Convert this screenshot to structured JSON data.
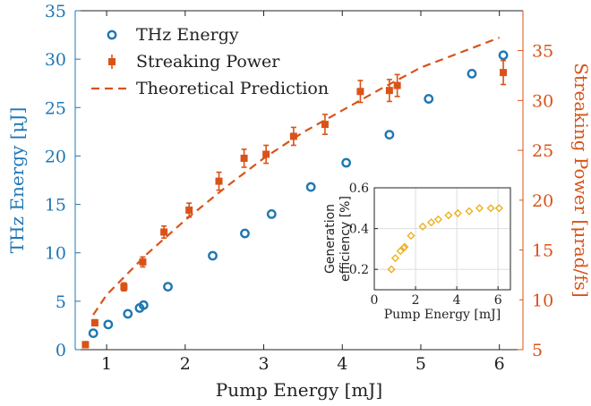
{
  "chart_data": [
    {
      "type": "scatter",
      "xlabel": "Pump Energy [mJ]",
      "ylabel": "THz Energy [μJ]",
      "y2label": "Streaking Power [μrad/fs]",
      "xlim": [
        0.6,
        6.3
      ],
      "ylim": [
        0,
        35
      ],
      "y2lim": [
        5,
        39
      ],
      "xticks": [
        "1",
        "2",
        "3",
        "4",
        "5",
        "6"
      ],
      "yticks": [
        "0",
        "5",
        "10",
        "15",
        "20",
        "25",
        "30",
        "35"
      ],
      "y2ticks": [
        "5",
        "10",
        "15",
        "20",
        "25",
        "30",
        "35"
      ],
      "grid": false,
      "legend_position": "top-left",
      "colors": {
        "left_axis": "#1f77b4",
        "right_axis": "#d95319",
        "marker_blue": "#1f77b4",
        "marker_orange": "#d95319"
      },
      "series": [
        {
          "name": "THz Energy",
          "axis": "left",
          "marker": "circle",
          "x": [
            0.83,
            1.02,
            1.27,
            1.42,
            1.47,
            1.78,
            2.35,
            2.76,
            3.1,
            3.6,
            4.05,
            4.6,
            5.1,
            5.65,
            6.05
          ],
          "y": [
            1.7,
            2.6,
            3.7,
            4.3,
            4.6,
            6.5,
            9.7,
            12.0,
            14.0,
            16.8,
            19.3,
            22.2,
            25.9,
            28.5,
            30.4
          ]
        },
        {
          "name": "Streaking Power",
          "axis": "right",
          "marker": "square-errorbar",
          "x": [
            0.73,
            0.85,
            1.22,
            1.46,
            1.73,
            2.05,
            2.43,
            2.75,
            3.03,
            3.38,
            3.78,
            4.23,
            4.6,
            4.7,
            6.05
          ],
          "y": [
            5.5,
            7.7,
            11.3,
            13.8,
            16.8,
            19.0,
            21.9,
            24.2,
            24.6,
            26.4,
            27.6,
            30.9,
            31.0,
            31.5,
            32.8
          ],
          "err": [
            0.3,
            0.3,
            0.4,
            0.5,
            0.6,
            0.7,
            0.9,
            0.9,
            0.9,
            0.9,
            1.0,
            1.1,
            1.1,
            1.1,
            1.2
          ]
        },
        {
          "name": "Theoretical Prediction",
          "axis": "right",
          "style": "dashed-line",
          "x": [
            0.83,
            1.0,
            1.5,
            2.0,
            2.5,
            3.0,
            3.5,
            4.0,
            4.5,
            5.0,
            5.5,
            6.0
          ],
          "y": [
            8.5,
            10.5,
            14.5,
            18.0,
            21.2,
            24.2,
            26.8,
            29.0,
            31.2,
            33.3,
            34.8,
            36.3
          ]
        }
      ]
    },
    {
      "type": "scatter",
      "inset": true,
      "xlabel": "Pump Energy [mJ]",
      "ylabel": "Generation efficiency [%]",
      "xlim": [
        0,
        6.6
      ],
      "ylim": [
        0.1,
        0.6
      ],
      "xticks": [
        "0",
        "2",
        "4",
        "6"
      ],
      "yticks": [
        "0.2",
        "0.4",
        "0.6"
      ],
      "grid": true,
      "series": [
        {
          "marker": "diamond",
          "color": "#edb120",
          "x": [
            0.83,
            1.02,
            1.27,
            1.42,
            1.47,
            1.78,
            2.35,
            2.76,
            3.1,
            3.6,
            4.05,
            4.6,
            5.1,
            5.65,
            6.05
          ],
          "y": [
            0.2,
            0.255,
            0.29,
            0.305,
            0.31,
            0.365,
            0.41,
            0.43,
            0.445,
            0.465,
            0.475,
            0.485,
            0.5,
            0.5,
            0.5
          ]
        }
      ]
    }
  ]
}
